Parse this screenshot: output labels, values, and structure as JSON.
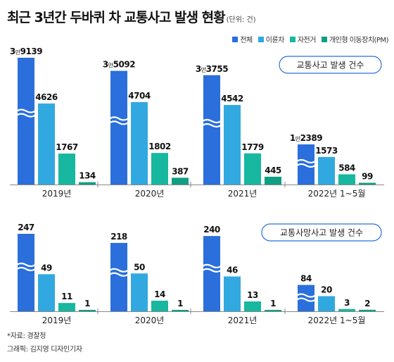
{
  "title": "최근 3년간 두바퀴 차 교통사고 발생 현황",
  "unit": "(단위: 건)",
  "legend": [
    {
      "name": "전체",
      "color": "#2a6fdb"
    },
    {
      "name": "이륜차",
      "color": "#31a9e0"
    },
    {
      "name": "자전거",
      "color": "#17b7a0"
    },
    {
      "name": "개인형 이동장치(PM)",
      "color": "#0f9f83"
    }
  ],
  "chart_data": [
    {
      "type": "bar",
      "title": "교통사고 발생 건수",
      "categories": [
        "2019년",
        "2020년",
        "2021년",
        "2022년 1~5월"
      ],
      "series": [
        {
          "name": "전체",
          "values": [
            39139,
            35092,
            33755,
            12389
          ],
          "labels": [
            "3만9139",
            "3만5092",
            "3만3755",
            "1만2389"
          ],
          "broken": true
        },
        {
          "name": "이륜차",
          "values": [
            4626,
            4704,
            4542,
            1573
          ],
          "labels": [
            "4626",
            "4704",
            "4542",
            "1573"
          ]
        },
        {
          "name": "자전거",
          "values": [
            1767,
            1802,
            1779,
            584
          ],
          "labels": [
            "1767",
            "1802",
            "1779",
            "584"
          ]
        },
        {
          "name": "개인형 이동장치(PM)",
          "values": [
            134,
            387,
            445,
            99
          ],
          "labels": [
            "134",
            "387",
            "445",
            "99"
          ]
        }
      ]
    },
    {
      "type": "bar",
      "title": "교통사망사고 발생 건수",
      "categories": [
        "2019년",
        "2020년",
        "2021년",
        "2022년 1~5월"
      ],
      "series": [
        {
          "name": "전체",
          "values": [
            247,
            218,
            240,
            84
          ],
          "labels": [
            "247",
            "218",
            "240",
            "84"
          ],
          "broken": true
        },
        {
          "name": "이륜차",
          "values": [
            49,
            50,
            46,
            20
          ],
          "labels": [
            "49",
            "50",
            "46",
            "20"
          ]
        },
        {
          "name": "자전거",
          "values": [
            11,
            14,
            13,
            3
          ],
          "labels": [
            "11",
            "14",
            "13",
            "3"
          ]
        },
        {
          "name": "개인형 이동장치(PM)",
          "values": [
            1,
            1,
            1,
            2
          ],
          "labels": [
            "1",
            "1",
            "1",
            "2"
          ]
        }
      ]
    }
  ],
  "footer": {
    "source": "*자료: 경찰청",
    "credit": "그래픽: 김지영 디자인기자"
  }
}
